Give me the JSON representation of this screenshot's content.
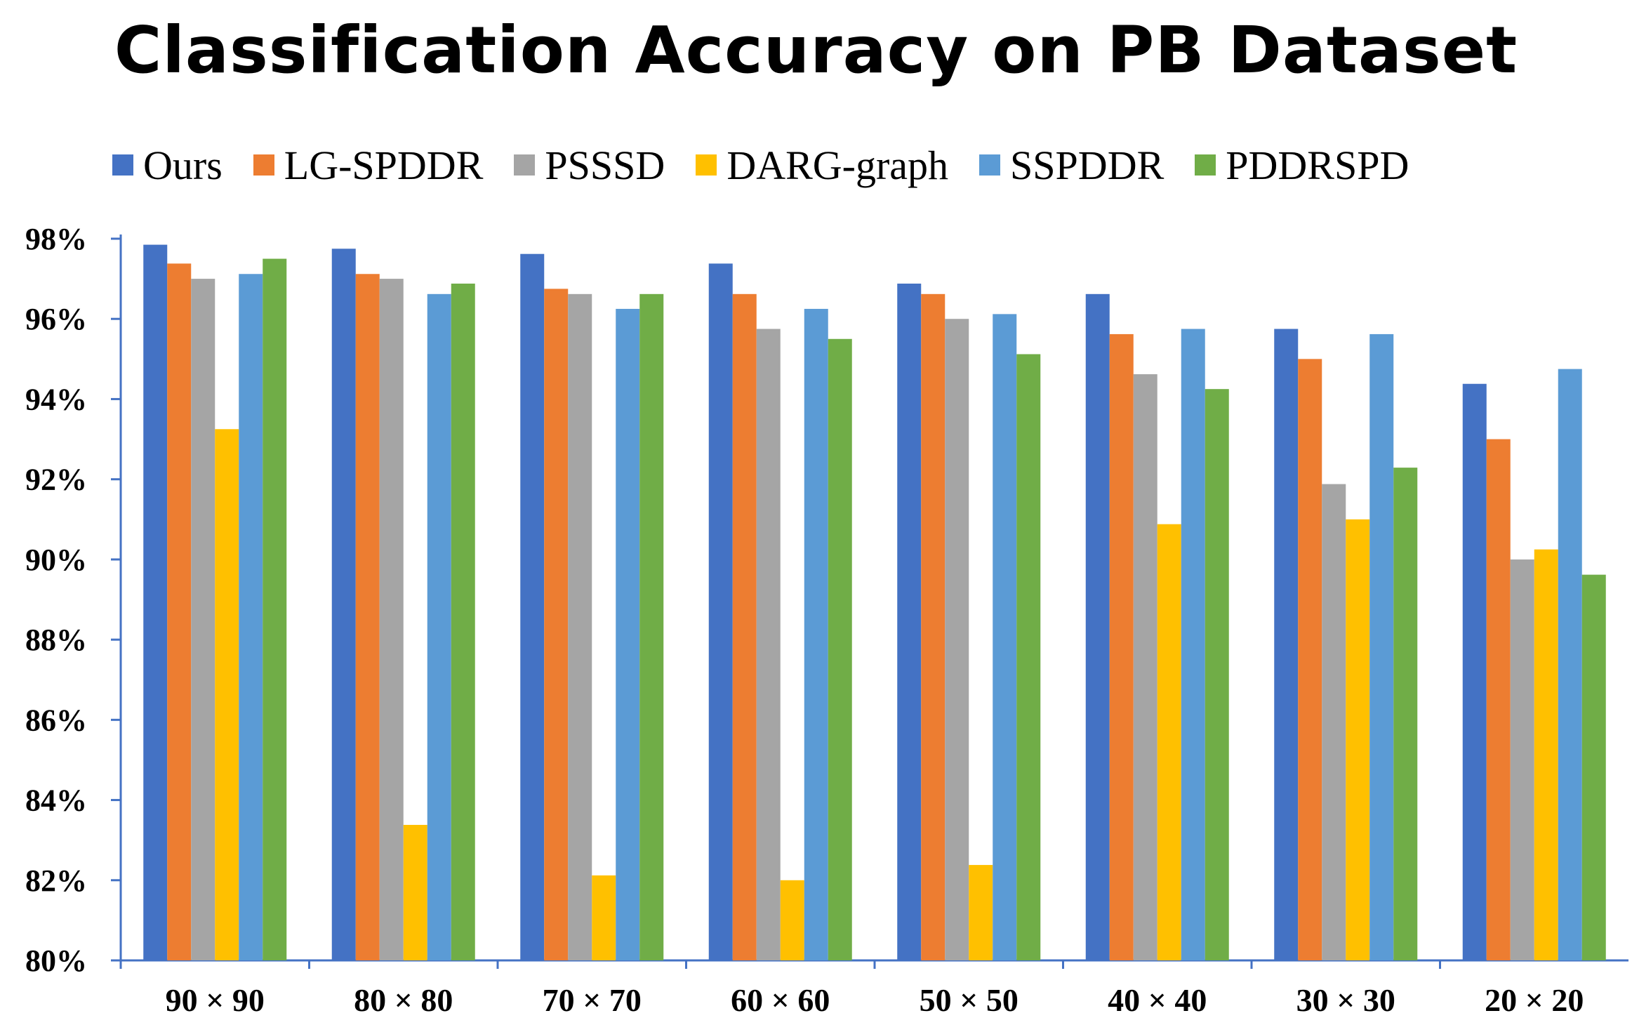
{
  "chart_data": {
    "type": "bar",
    "title": "Classification Accuracy on PB Dataset",
    "xlabel": "",
    "ylabel": "",
    "ylim": [
      80,
      98
    ],
    "yticks": [
      80,
      82,
      84,
      86,
      88,
      90,
      92,
      94,
      96,
      98
    ],
    "ytick_suffix": "%",
    "categories": [
      "90 × 90",
      "80 × 80",
      "70 × 70",
      "60 × 60",
      "50 × 50",
      "40 × 40",
      "30 × 30",
      "20 × 20"
    ],
    "legend_position": "top",
    "series": [
      {
        "name": "Ours",
        "color": "#4472C4",
        "values": [
          97.85,
          97.75,
          97.62,
          97.38,
          96.88,
          96.62,
          95.75,
          94.38
        ]
      },
      {
        "name": "LG-SPDDR",
        "color": "#ED7D31",
        "values": [
          97.38,
          97.12,
          96.75,
          96.62,
          96.62,
          95.62,
          95.0,
          93.0
        ]
      },
      {
        "name": "PSSSD",
        "color": "#A5A5A5",
        "values": [
          97.0,
          97.0,
          96.62,
          95.75,
          96.0,
          94.62,
          91.88,
          90.0
        ]
      },
      {
        "name": "DARG-graph",
        "color": "#FFC000",
        "values": [
          93.25,
          83.38,
          82.12,
          82.0,
          82.38,
          90.88,
          91.0,
          90.25
        ]
      },
      {
        "name": "SSPDDR",
        "color": "#5B9BD5",
        "values": [
          97.12,
          96.62,
          96.25,
          96.25,
          96.12,
          95.75,
          95.62,
          94.75
        ]
      },
      {
        "name": "PDDRSPD",
        "color": "#70AD47",
        "values": [
          97.5,
          96.88,
          96.62,
          95.5,
          95.12,
          94.25,
          92.29,
          89.62
        ]
      }
    ]
  }
}
